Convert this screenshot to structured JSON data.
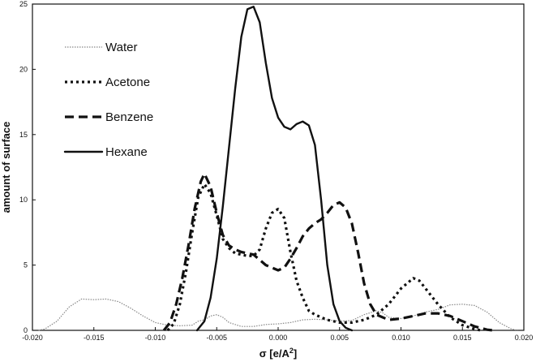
{
  "chart_data": {
    "type": "line",
    "xlabel": "σ [e/A²]",
    "ylabel": "amount of surface",
    "xlim": [
      -0.02,
      0.02
    ],
    "ylim": [
      0,
      25
    ],
    "x_ticks": [
      "-0.020",
      "-0.015",
      "-0.010",
      "-0.005",
      "0.000",
      "0.005",
      "0.010",
      "0.015",
      "0.020"
    ],
    "y_ticks": [
      "0",
      "5",
      "10",
      "15",
      "20",
      "25"
    ],
    "grid": false,
    "legend": "top-left",
    "series": [
      {
        "name": "Water",
        "style": "dotted-thin",
        "color": "#888888",
        "points": [
          [
            -0.0195,
            0.0
          ],
          [
            -0.019,
            0.1
          ],
          [
            -0.018,
            0.7
          ],
          [
            -0.017,
            1.8
          ],
          [
            -0.016,
            2.4
          ],
          [
            -0.015,
            2.35
          ],
          [
            -0.014,
            2.4
          ],
          [
            -0.013,
            2.2
          ],
          [
            -0.012,
            1.7
          ],
          [
            -0.011,
            1.1
          ],
          [
            -0.01,
            0.6
          ],
          [
            -0.009,
            0.4
          ],
          [
            -0.008,
            0.35
          ],
          [
            -0.007,
            0.4
          ],
          [
            -0.0065,
            0.7
          ],
          [
            -0.006,
            0.8
          ],
          [
            -0.0055,
            1.1
          ],
          [
            -0.005,
            1.2
          ],
          [
            -0.0045,
            1.0
          ],
          [
            -0.004,
            0.6
          ],
          [
            -0.003,
            0.3
          ],
          [
            -0.002,
            0.3
          ],
          [
            -0.001,
            0.45
          ],
          [
            0.0,
            0.5
          ],
          [
            0.001,
            0.6
          ],
          [
            0.002,
            0.8
          ],
          [
            0.003,
            0.85
          ],
          [
            0.004,
            0.8
          ],
          [
            0.005,
            0.7
          ],
          [
            0.006,
            0.75
          ],
          [
            0.007,
            1.2
          ],
          [
            0.008,
            1.5
          ],
          [
            0.0085,
            1.35
          ],
          [
            0.009,
            1.0
          ],
          [
            0.01,
            0.9
          ],
          [
            0.011,
            1.1
          ],
          [
            0.012,
            1.4
          ],
          [
            0.013,
            1.6
          ],
          [
            0.014,
            1.95
          ],
          [
            0.015,
            2.0
          ],
          [
            0.016,
            1.9
          ],
          [
            0.017,
            1.4
          ],
          [
            0.018,
            0.6
          ],
          [
            0.019,
            0.1
          ],
          [
            0.0195,
            0.0
          ]
        ]
      },
      {
        "name": "Acetone",
        "style": "dotted-heavy",
        "color": "#111111",
        "points": [
          [
            -0.009,
            0.0
          ],
          [
            -0.0085,
            0.5
          ],
          [
            -0.008,
            2.0
          ],
          [
            -0.0075,
            4.5
          ],
          [
            -0.007,
            7.5
          ],
          [
            -0.0065,
            10.2
          ],
          [
            -0.006,
            11.2
          ],
          [
            -0.0055,
            10.5
          ],
          [
            -0.005,
            8.8
          ],
          [
            -0.0045,
            7.0
          ],
          [
            -0.004,
            6.3
          ],
          [
            -0.0035,
            5.9
          ],
          [
            -0.003,
            5.8
          ],
          [
            -0.0025,
            5.7
          ],
          [
            -0.002,
            5.7
          ],
          [
            -0.0015,
            6.2
          ],
          [
            -0.001,
            7.8
          ],
          [
            -0.0005,
            9.0
          ],
          [
            0.0,
            9.3
          ],
          [
            0.0005,
            8.6
          ],
          [
            0.001,
            6.0
          ],
          [
            0.0015,
            3.8
          ],
          [
            0.002,
            2.5
          ],
          [
            0.0025,
            1.5
          ],
          [
            0.003,
            1.2
          ],
          [
            0.0035,
            1.0
          ],
          [
            0.004,
            0.8
          ],
          [
            0.005,
            0.6
          ],
          [
            0.006,
            0.6
          ],
          [
            0.007,
            0.8
          ],
          [
            0.008,
            1.2
          ],
          [
            0.009,
            2.0
          ],
          [
            0.01,
            3.2
          ],
          [
            0.011,
            4.0
          ],
          [
            0.0115,
            3.8
          ],
          [
            0.012,
            3.2
          ],
          [
            0.013,
            2.0
          ],
          [
            0.014,
            1.0
          ],
          [
            0.015,
            0.4
          ],
          [
            0.016,
            0.1
          ],
          [
            0.0165,
            0.0
          ]
        ]
      },
      {
        "name": "Benzene",
        "style": "dashed",
        "color": "#111111",
        "points": [
          [
            -0.0093,
            0.0
          ],
          [
            -0.0088,
            0.6
          ],
          [
            -0.0083,
            2.0
          ],
          [
            -0.0078,
            4.0
          ],
          [
            -0.0073,
            6.5
          ],
          [
            -0.0068,
            9.3
          ],
          [
            -0.0063,
            11.4
          ],
          [
            -0.006,
            12.0
          ],
          [
            -0.0055,
            11.0
          ],
          [
            -0.005,
            9.0
          ],
          [
            -0.0045,
            7.3
          ],
          [
            -0.004,
            6.5
          ],
          [
            -0.0035,
            6.2
          ],
          [
            -0.003,
            6.0
          ],
          [
            -0.0025,
            5.9
          ],
          [
            -0.002,
            5.8
          ],
          [
            -0.0015,
            5.4
          ],
          [
            -0.001,
            5.0
          ],
          [
            -0.0005,
            4.8
          ],
          [
            0.0,
            4.6
          ],
          [
            0.0005,
            4.8
          ],
          [
            0.001,
            5.5
          ],
          [
            0.0015,
            6.3
          ],
          [
            0.002,
            7.2
          ],
          [
            0.0025,
            7.8
          ],
          [
            0.003,
            8.2
          ],
          [
            0.0035,
            8.5
          ],
          [
            0.004,
            9.0
          ],
          [
            0.0045,
            9.6
          ],
          [
            0.005,
            9.8
          ],
          [
            0.0055,
            9.4
          ],
          [
            0.006,
            8.2
          ],
          [
            0.0065,
            6.0
          ],
          [
            0.007,
            3.6
          ],
          [
            0.0075,
            2.0
          ],
          [
            0.008,
            1.2
          ],
          [
            0.009,
            0.8
          ],
          [
            0.01,
            0.9
          ],
          [
            0.011,
            1.1
          ],
          [
            0.012,
            1.3
          ],
          [
            0.013,
            1.3
          ],
          [
            0.014,
            1.1
          ],
          [
            0.015,
            0.7
          ],
          [
            0.016,
            0.3
          ],
          [
            0.017,
            0.05
          ],
          [
            0.0175,
            0.0
          ]
        ]
      },
      {
        "name": "Hexane",
        "style": "solid",
        "color": "#111111",
        "points": [
          [
            -0.0066,
            0.0
          ],
          [
            -0.006,
            0.7
          ],
          [
            -0.0055,
            2.5
          ],
          [
            -0.005,
            5.5
          ],
          [
            -0.0045,
            9.5
          ],
          [
            -0.004,
            14.0
          ],
          [
            -0.0035,
            18.5
          ],
          [
            -0.003,
            22.5
          ],
          [
            -0.0025,
            24.6
          ],
          [
            -0.002,
            24.8
          ],
          [
            -0.0015,
            23.6
          ],
          [
            -0.001,
            20.5
          ],
          [
            -0.0005,
            17.8
          ],
          [
            0.0,
            16.3
          ],
          [
            0.0005,
            15.6
          ],
          [
            0.001,
            15.4
          ],
          [
            0.0015,
            15.8
          ],
          [
            0.002,
            16.0
          ],
          [
            0.0025,
            15.7
          ],
          [
            0.003,
            14.2
          ],
          [
            0.0035,
            10.0
          ],
          [
            0.004,
            5.0
          ],
          [
            0.0045,
            2.0
          ],
          [
            0.005,
            0.7
          ],
          [
            0.0055,
            0.2
          ],
          [
            0.006,
            0.0
          ]
        ]
      }
    ]
  }
}
